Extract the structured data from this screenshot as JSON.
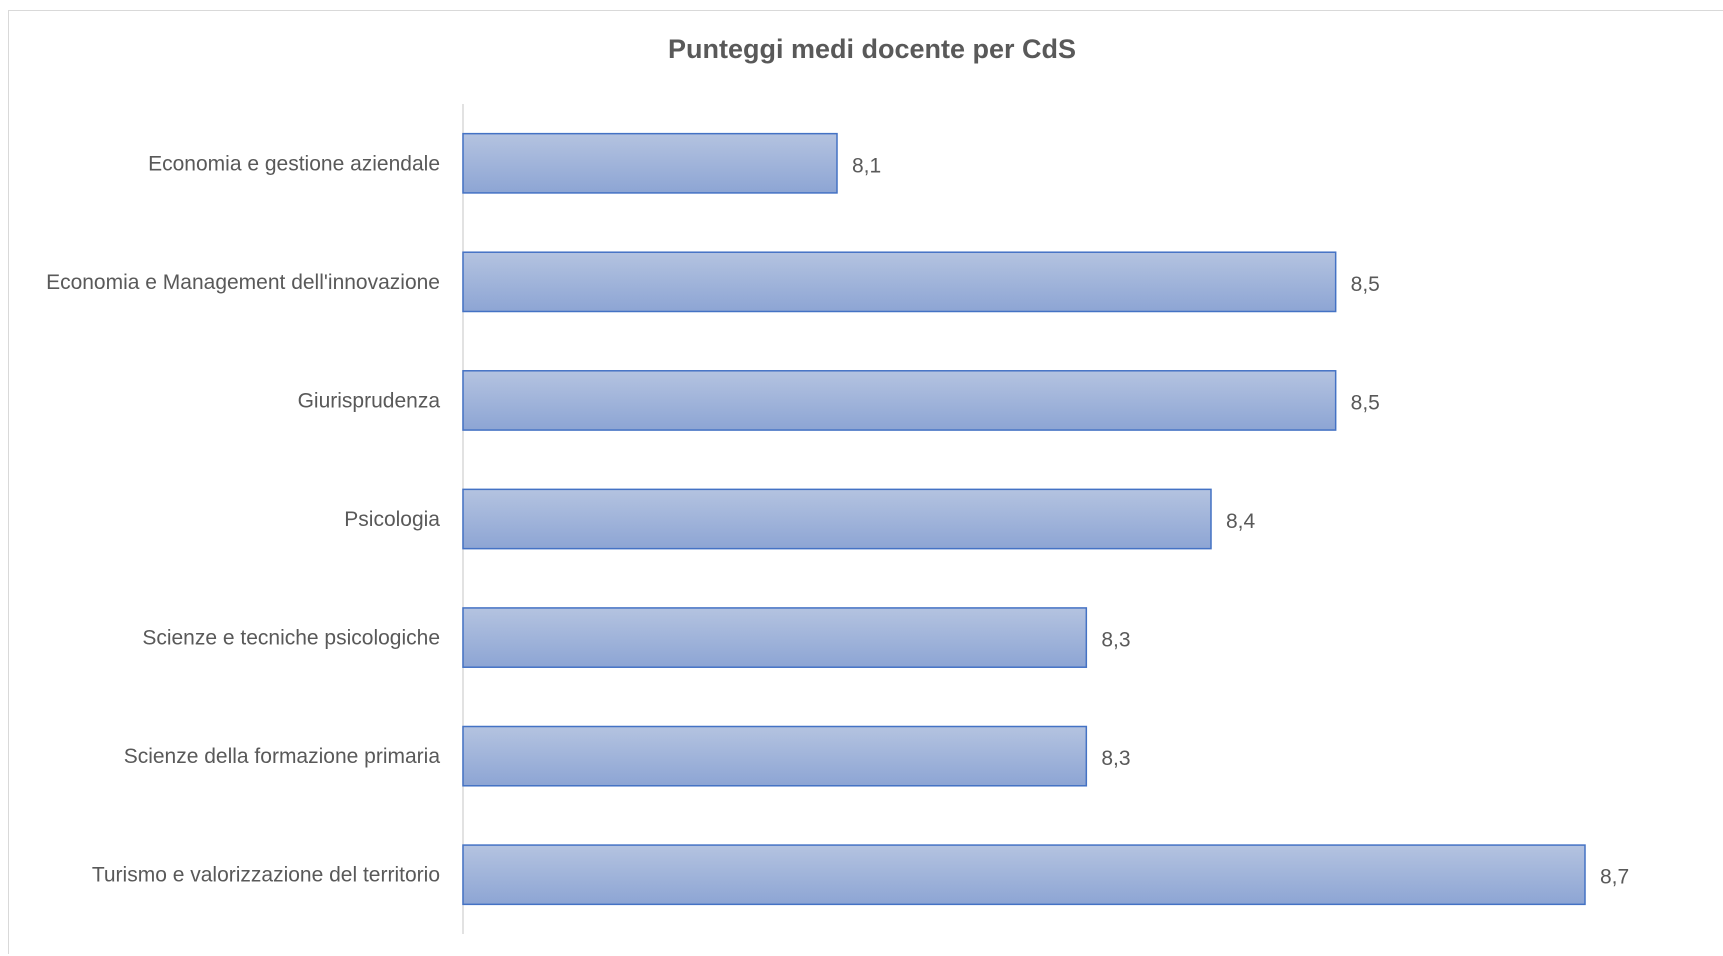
{
  "chart_data": {
    "type": "bar",
    "orientation": "horizontal",
    "title": "Punteggi medi docente per CdS",
    "xlabel": "",
    "ylabel": "",
    "categories": [
      "Economia e gestione aziendale",
      "Economia e Management dell'innovazione",
      "Giurisprudenza",
      "Psicologia",
      "Scienze e tecniche psicologiche",
      "Scienze della formazione primaria",
      "Turismo e valorizzazione del territorio"
    ],
    "values": [
      8.1,
      8.5,
      8.5,
      8.4,
      8.3,
      8.3,
      8.7
    ],
    "value_labels": [
      "8,1",
      "8,5",
      "8,5",
      "8,4",
      "8,3",
      "8,3",
      "8,7"
    ],
    "xlim": [
      7.8,
      8.7
    ],
    "grid": false,
    "legend": "none",
    "colors": {
      "bar_fill_top": "#b4c3e0",
      "bar_fill_bottom": "#8da5d4",
      "bar_stroke": "#4472c4",
      "axis": "#d9d9d9",
      "text": "#595959"
    }
  }
}
